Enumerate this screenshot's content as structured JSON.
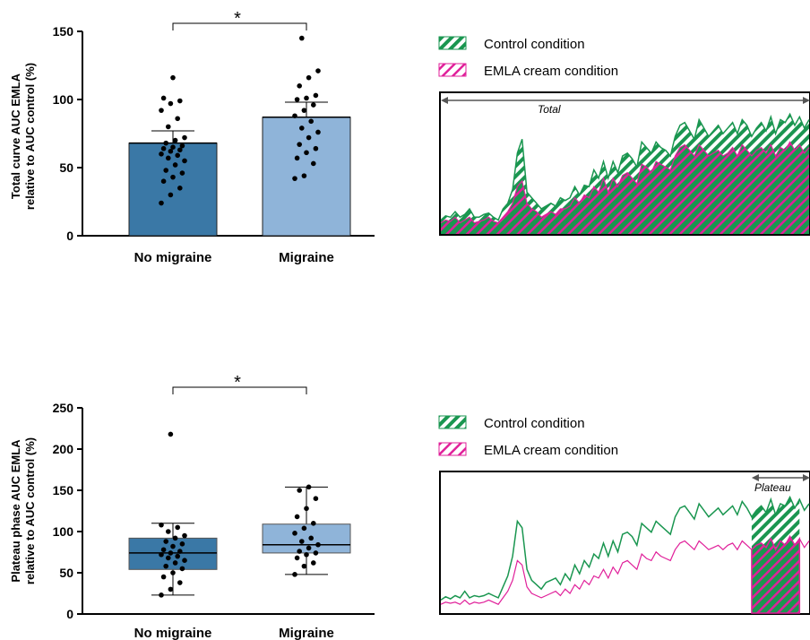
{
  "colors": {
    "no_migraine_bar": "#3a78a6",
    "migraine_bar": "#8fb4d9",
    "control": "#1a9650",
    "emla": "#e0209a",
    "axis": "#000000"
  },
  "chart_data": [
    {
      "type": "bar",
      "categories": [
        "No migraine",
        "Migraine"
      ],
      "values": [
        68,
        87
      ],
      "error_upper": [
        77,
        98
      ],
      "ylabel_line1": "Total curve AUC EMLA",
      "ylabel_line2": "relative to AUC control (%)",
      "ylim": [
        0,
        150
      ],
      "yticks": [
        0,
        50,
        100,
        150
      ],
      "significance": "*",
      "points": [
        [
          24,
          30,
          35,
          40,
          43,
          46,
          48,
          52,
          55,
          57,
          59,
          60,
          62,
          63,
          64,
          65,
          66,
          68,
          70,
          72,
          80,
          86,
          92,
          97,
          99,
          101,
          116
        ],
        [
          42,
          44,
          53,
          57,
          61,
          64,
          67,
          72,
          76,
          79,
          84,
          88,
          92,
          96,
          100,
          101,
          103,
          110,
          116,
          121,
          145
        ]
      ]
    },
    {
      "type": "line",
      "legend": [
        "Control condition",
        "EMLA cream condition"
      ],
      "annotation": "Total",
      "series": [
        {
          "name": "Control condition",
          "values": [
            10,
            13,
            12,
            16,
            12,
            14,
            18,
            12,
            12,
            14,
            15,
            12,
            10,
            18,
            22,
            32,
            58,
            68,
            30,
            26,
            22,
            18,
            20,
            22,
            20,
            26,
            24,
            26,
            34,
            28,
            35,
            34,
            46,
            40,
            52,
            40,
            52,
            44,
            56,
            58,
            54,
            48,
            66,
            62,
            58,
            66,
            62,
            60,
            56,
            70,
            78,
            80,
            74,
            68,
            82,
            76,
            70,
            74,
            78,
            72,
            76,
            80,
            72,
            82,
            78,
            70,
            76,
            80,
            74,
            84,
            72,
            82,
            80,
            86,
            78,
            84,
            76,
            82
          ]
        },
        {
          "name": "EMLA cream condition",
          "values": [
            8,
            10,
            9,
            12,
            8,
            10,
            12,
            8,
            9,
            10,
            12,
            9,
            8,
            12,
            16,
            22,
            34,
            38,
            22,
            18,
            16,
            12,
            14,
            16,
            14,
            18,
            18,
            20,
            26,
            22,
            28,
            26,
            34,
            30,
            40,
            30,
            40,
            34,
            42,
            44,
            40,
            36,
            50,
            48,
            44,
            52,
            50,
            48,
            46,
            56,
            62,
            64,
            60,
            56,
            64,
            60,
            56,
            58,
            60,
            56,
            58,
            62,
            56,
            64,
            60,
            56,
            60,
            62,
            58,
            64,
            56,
            62,
            60,
            66,
            60,
            64,
            58,
            62
          ]
        }
      ]
    },
    {
      "type": "box",
      "categories": [
        "No migraine",
        "Migraine"
      ],
      "boxes": [
        {
          "min": 23,
          "q1": 54,
          "median": 74,
          "q3": 92,
          "max": 110
        },
        {
          "min": 48,
          "q1": 74,
          "median": 84,
          "q3": 109,
          "max": 154
        }
      ],
      "ylabel_line1": "Plateau phase AUC EMLA",
      "ylabel_line2": "relative to AUC control (%)",
      "ylim": [
        0,
        250
      ],
      "yticks": [
        0,
        50,
        100,
        150,
        200,
        250
      ],
      "significance": "*",
      "points": [
        [
          23,
          30,
          38,
          45,
          50,
          55,
          58,
          62,
          65,
          68,
          70,
          72,
          74,
          76,
          78,
          82,
          85,
          88,
          92,
          95,
          100,
          105,
          108,
          218
        ],
        [
          48,
          58,
          62,
          68,
          72,
          74,
          76,
          80,
          84,
          88,
          92,
          98,
          104,
          110,
          118,
          128,
          140,
          150,
          154
        ]
      ]
    },
    {
      "type": "line",
      "legend": [
        "Control condition",
        "EMLA cream condition"
      ],
      "annotation": "Plateau",
      "plateau_range": [
        0.84,
        0.97
      ],
      "series": [
        {
          "name": "Control condition",
          "values": [
            12,
            15,
            13,
            16,
            14,
            20,
            14,
            16,
            15,
            16,
            18,
            16,
            14,
            24,
            34,
            52,
            84,
            78,
            40,
            30,
            26,
            22,
            28,
            30,
            32,
            26,
            36,
            30,
            44,
            36,
            48,
            42,
            54,
            50,
            64,
            52,
            66,
            56,
            72,
            74,
            70,
            62,
            82,
            78,
            74,
            84,
            80,
            76,
            72,
            88,
            96,
            98,
            92,
            86,
            100,
            94,
            88,
            92,
            96,
            90,
            94,
            98,
            90,
            102,
            96,
            88,
            94,
            98,
            92,
            104,
            90,
            100,
            98,
            106,
            96,
            104,
            94,
            100
          ]
        },
        {
          "name": "EMLA cream condition",
          "values": [
            8,
            10,
            9,
            10,
            8,
            12,
            8,
            10,
            9,
            10,
            12,
            10,
            8,
            14,
            20,
            30,
            48,
            44,
            24,
            18,
            16,
            14,
            16,
            18,
            20,
            16,
            22,
            18,
            26,
            22,
            30,
            26,
            34,
            32,
            40,
            32,
            42,
            36,
            46,
            48,
            44,
            40,
            54,
            50,
            48,
            56,
            52,
            50,
            48,
            58,
            64,
            66,
            62,
            58,
            66,
            62,
            58,
            60,
            62,
            58,
            62,
            64,
            58,
            66,
            62,
            58,
            62,
            64,
            60,
            68,
            58,
            66,
            62,
            70,
            62,
            68,
            60,
            66
          ]
        }
      ]
    }
  ]
}
